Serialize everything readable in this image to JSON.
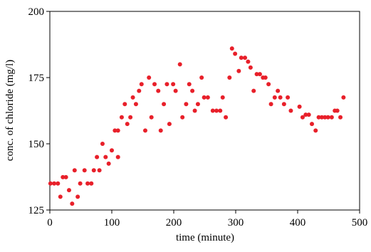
{
  "chart_data": {
    "type": "scatter",
    "x_label": "time (minute)",
    "y_label": "conc. of chloride (mg/l)",
    "xlim": [
      0,
      500
    ],
    "xticks": [
      0,
      100,
      200,
      300,
      400,
      500
    ],
    "ylim": [
      125,
      200
    ],
    "yticks": [
      125,
      150,
      175,
      200
    ],
    "grid": false,
    "color": "#e8202a",
    "x": [
      1,
      7,
      13,
      17,
      21,
      26,
      31,
      36,
      40,
      45,
      49,
      56,
      61,
      67,
      71,
      76,
      80,
      85,
      90,
      95,
      100,
      105,
      110,
      110,
      116,
      121,
      125,
      130,
      134,
      139,
      144,
      148,
      154,
      160,
      164,
      169,
      175,
      179,
      184,
      189,
      193,
      199,
      203,
      210,
      214,
      220,
      225,
      230,
      234,
      239,
      245,
      249,
      255,
      263,
      269,
      275,
      279,
      284,
      290,
      294,
      299,
      305,
      309,
      315,
      320,
      324,
      329,
      334,
      339,
      344,
      348,
      353,
      357,
      363,
      368,
      372,
      378,
      384,
      389,
      403,
      408,
      413,
      418,
      423,
      429,
      434,
      439,
      444,
      449,
      455,
      460,
      464,
      469,
      474
    ],
    "values": [
      135,
      135,
      135,
      130,
      137.4,
      137.4,
      132.5,
      127.4,
      140,
      130,
      135,
      140,
      135,
      135,
      140,
      145,
      140,
      150,
      145,
      142.5,
      147.5,
      155,
      155,
      145,
      160,
      165,
      157.5,
      160,
      167.5,
      165,
      170,
      172.5,
      155,
      175,
      160,
      172.5,
      170,
      155,
      165,
      172.5,
      157.5,
      172.5,
      170,
      180,
      160,
      165,
      172.5,
      170,
      162.5,
      165,
      175,
      167.5,
      167.5,
      162.5,
      162.5,
      162.5,
      167.5,
      160,
      175,
      186,
      184,
      177.5,
      182.5,
      182.5,
      181,
      178.8,
      170,
      176.3,
      176.3,
      175,
      175,
      172.5,
      165,
      167.5,
      170,
      167.5,
      165,
      167.5,
      162.5,
      164,
      160,
      161,
      161,
      157.5,
      155,
      160,
      160,
      160,
      160,
      160,
      162.5,
      162.5,
      160,
      167.5
    ]
  }
}
